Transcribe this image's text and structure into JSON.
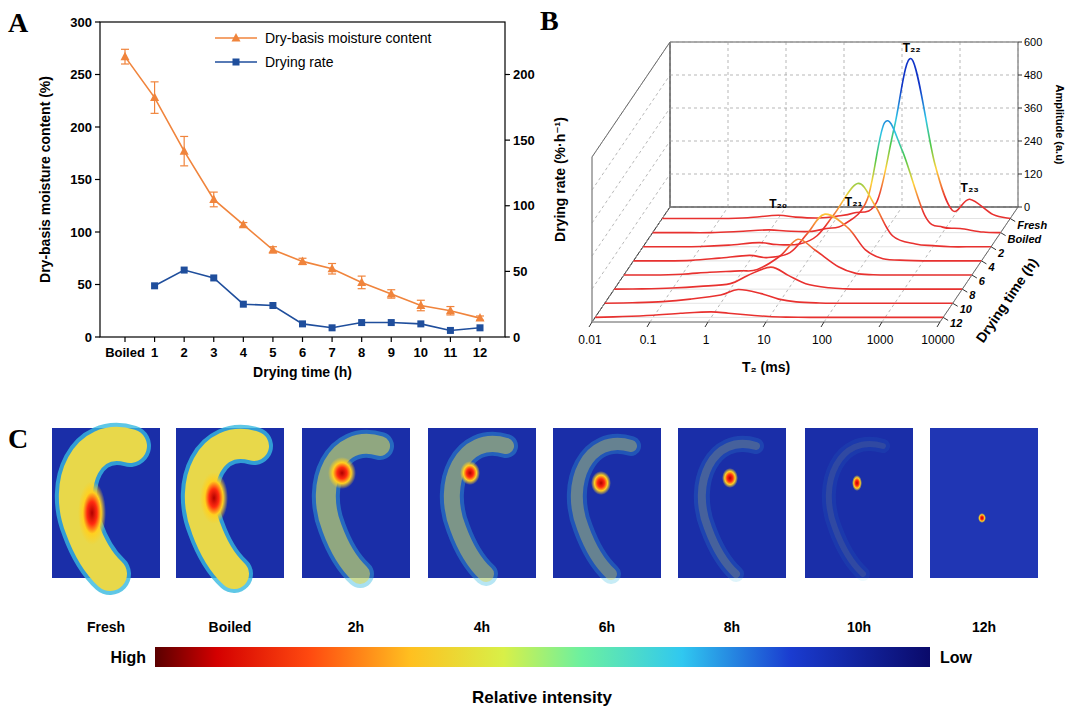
{
  "panel_labels": [
    "A",
    "B",
    "C"
  ],
  "chart_data": [
    {
      "type": "line",
      "categories": [
        "Boiled",
        "1",
        "2",
        "3",
        "4",
        "5",
        "6",
        "7",
        "8",
        "9",
        "10",
        "11",
        "12"
      ],
      "x_label": "Drying time (h)",
      "y_label": "Dry-basis moisture content (%)",
      "y2_label": "Drying rate (%·h⁻¹)",
      "ylim": [
        0,
        300
      ],
      "yticks": [
        0,
        50,
        100,
        150,
        200,
        250,
        300
      ],
      "y2lim": [
        0,
        240
      ],
      "y2ticks": [
        0,
        50,
        100,
        150,
        200
      ],
      "legend": "top",
      "series": [
        {
          "name": "Dry-basis moisture content",
          "color": "#f0843c",
          "marker": "triangle",
          "values": [
            267,
            228,
            177,
            131,
            107,
            83,
            72,
            65,
            52,
            41,
            30,
            25,
            18
          ],
          "error": [
            7,
            15,
            14,
            7,
            2,
            3,
            3,
            5,
            6,
            4,
            5,
            4,
            2
          ]
        },
        {
          "name": "Drying rate",
          "color": "#1f4e9c",
          "marker": "square",
          "axis": "y2",
          "values": [
            null,
            39,
            51,
            45,
            25,
            24,
            10,
            7,
            11,
            11,
            10,
            5,
            7
          ]
        }
      ]
    },
    {
      "type": "waterfall",
      "x_label": "T₂ (ms)",
      "y_label": "Amplitude (a.u)",
      "z_label": "Drying time (h)",
      "log": "x",
      "x": [
        0.01,
        0.03,
        0.1,
        0.3,
        1,
        2,
        5,
        10,
        20,
        50,
        100,
        200,
        500,
        1000,
        2000,
        5000,
        10000
      ],
      "xlim": [
        0.01,
        10000
      ],
      "xticks": [
        0.01,
        0.1,
        1,
        10,
        100,
        1000,
        10000
      ],
      "ylim": [
        0,
        600
      ],
      "yticks": [
        0,
        120,
        240,
        360,
        480,
        600
      ],
      "grid": true,
      "series": [
        {
          "name": "Fresh",
          "color": "#e8312f",
          "values": [
            0,
            0,
            0,
            3,
            12,
            5,
            2,
            8,
            20,
            60,
            330,
            580,
            200,
            30,
            70,
            15,
            0
          ]
        },
        {
          "name": "Boiled",
          "color": "#e8312f",
          "values": [
            0,
            0,
            0,
            4,
            10,
            6,
            4,
            15,
            30,
            120,
            400,
            300,
            60,
            20,
            15,
            2,
            0
          ]
        },
        {
          "name": "2",
          "color": "#e8312f",
          "values": [
            0,
            0,
            1,
            6,
            15,
            8,
            10,
            40,
            120,
            230,
            150,
            40,
            10,
            4,
            0,
            0,
            0
          ]
        },
        {
          "name": "4",
          "color": "#e8312f",
          "values": [
            0,
            0,
            2,
            10,
            20,
            12,
            30,
            100,
            170,
            120,
            40,
            8,
            2,
            0,
            0,
            0,
            0
          ]
        },
        {
          "name": "6",
          "color": "#e8312f",
          "values": [
            0,
            0,
            3,
            10,
            15,
            20,
            70,
            130,
            90,
            30,
            6,
            1,
            0,
            0,
            0,
            0,
            0
          ]
        },
        {
          "name": "8",
          "color": "#e8312f",
          "values": [
            0,
            1,
            4,
            10,
            20,
            50,
            80,
            50,
            20,
            5,
            1,
            0,
            0,
            0,
            0,
            0,
            0
          ]
        },
        {
          "name": "10",
          "color": "#e8312f",
          "values": [
            0,
            2,
            6,
            15,
            30,
            50,
            35,
            15,
            5,
            1,
            0,
            0,
            0,
            0,
            0,
            0,
            0
          ]
        },
        {
          "name": "12",
          "color": "#e8312f",
          "values": [
            0,
            3,
            8,
            15,
            20,
            15,
            8,
            3,
            1,
            0,
            0,
            0,
            0,
            0,
            0,
            0,
            0
          ]
        }
      ],
      "annotations": [
        {
          "text": "T₂₀",
          "x": 1,
          "y": 12,
          "series": "Fresh"
        },
        {
          "text": "T₂₁",
          "x": 20,
          "y": 20,
          "series": "Fresh"
        },
        {
          "text": "T₂₂",
          "x": 200,
          "y": 580,
          "series": "Fresh"
        },
        {
          "text": "T₂₃",
          "x": 2000,
          "y": 70,
          "series": "Fresh"
        }
      ]
    }
  ],
  "images": {
    "labels": [
      "Fresh",
      "Boiled",
      "2h",
      "4h",
      "6h",
      "8h",
      "10h",
      "12h"
    ],
    "colorbar": {
      "high": "High",
      "low": "Low",
      "title": "Relative intensity"
    }
  }
}
